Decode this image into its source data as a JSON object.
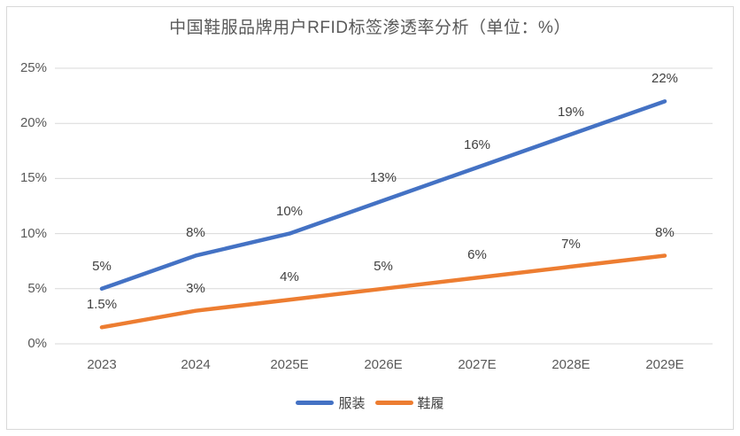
{
  "chart_data": {
    "type": "line",
    "title": "中国鞋服品牌用户RFID标签渗透率分析（单位：%）",
    "categories": [
      "2023",
      "2024",
      "2025E",
      "2026E",
      "2027E",
      "2028E",
      "2029E"
    ],
    "series": [
      {
        "id": "apparel",
        "name": "服装",
        "color": "#4472C4",
        "values": [
          5,
          8,
          10,
          13,
          16,
          19,
          22
        ],
        "labels": [
          "5%",
          "8%",
          "10%",
          "13%",
          "16%",
          "19%",
          "22%"
        ]
      },
      {
        "id": "footwear",
        "name": "鞋履",
        "color": "#ED7D31",
        "values": [
          1.5,
          3,
          4,
          5,
          6,
          7,
          8
        ],
        "labels": [
          "1.5%",
          "3%",
          "4%",
          "5%",
          "6%",
          "7%",
          "8%"
        ]
      }
    ],
    "xlabel": "",
    "ylabel": "",
    "ylim": [
      0,
      25
    ],
    "ytick_values": [
      0,
      5,
      10,
      15,
      20,
      25
    ],
    "yticks": [
      "0%",
      "5%",
      "10%",
      "15%",
      "20%",
      "25%"
    ],
    "grid": true,
    "legend_position": "bottom"
  },
  "colors": {
    "gridline": "#D9D9D9",
    "frame_border": "#D9D9D9",
    "axis_text": "#595959",
    "title_text": "#595959",
    "data_label_text": "#404040",
    "background": "#FFFFFF"
  }
}
